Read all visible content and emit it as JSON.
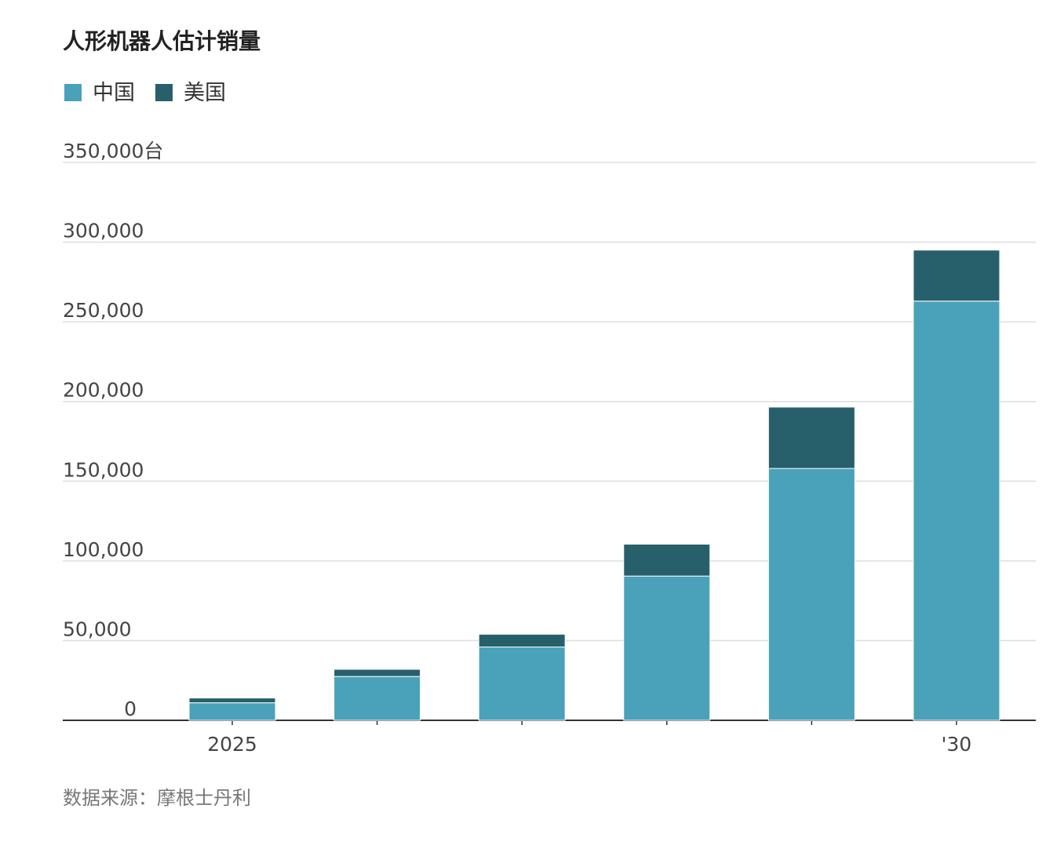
{
  "chart_data": {
    "type": "stacked_bar",
    "title": "人形机器人估计销量",
    "categories": [
      "2025",
      null,
      null,
      null,
      null,
      "'30"
    ],
    "series": [
      {
        "name": "中国",
        "color": "#4aa1ba",
        "values": [
          11000,
          27500,
          46000,
          90500,
          158000,
          263000
        ]
      },
      {
        "name": "美国",
        "color": "#27606b",
        "values": [
          3000,
          4500,
          8000,
          20000,
          38500,
          32000
        ]
      }
    ],
    "ylim": [
      0,
      350000
    ],
    "yticks": [
      0,
      {
        "value": 50000,
        "label": "50,000"
      },
      {
        "value": 100000,
        "label": "100,000"
      },
      {
        "value": 150000,
        "label": "150,000"
      },
      {
        "value": 200000,
        "label": "200,000"
      },
      {
        "value": 250000,
        "label": "250,000"
      },
      {
        "value": 300000,
        "label": "300,000"
      },
      {
        "value": 350000,
        "label": "350,000台"
      }
    ],
    "grid": true,
    "source": "数据来源：摩根士丹利"
  }
}
